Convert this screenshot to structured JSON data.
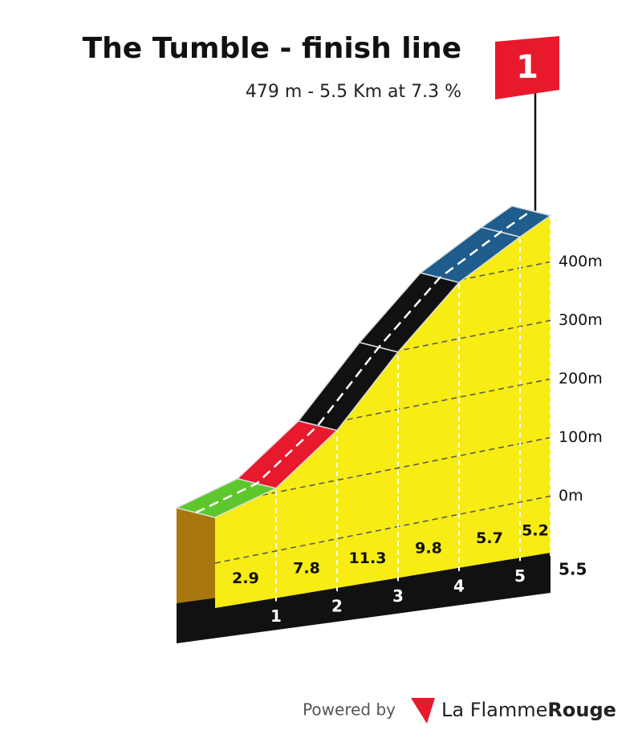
{
  "chart_data": {
    "type": "profile",
    "title": "The Tumble - finish line",
    "subtitle": "479 m - 5.5 Km at 7.3 %",
    "x": [
      0,
      1,
      2,
      3,
      4,
      5,
      5.5
    ],
    "elevation": [
      78,
      107,
      185,
      298,
      396,
      453,
      479
    ],
    "gradients": [
      2.9,
      7.8,
      11.3,
      9.8,
      5.7,
      5.2
    ],
    "segment_colors": [
      "#5ec72d",
      "#e8192c",
      "#111111",
      "#111111",
      "#1e5d8c",
      "#1e5d8c"
    ],
    "area_color": "#f7ec13",
    "xticks": [
      1,
      2,
      3,
      4,
      5,
      5.5
    ],
    "ylim": [
      0,
      400
    ],
    "yticks": [
      {
        "value": 0,
        "label": "0m"
      },
      {
        "value": 100,
        "label": "100m"
      },
      {
        "value": 200,
        "label": "200m"
      },
      {
        "value": 300,
        "label": "300m"
      },
      {
        "value": 400,
        "label": "400m"
      }
    ],
    "flag": "1"
  },
  "footer": {
    "powered": "Powered by",
    "brand_light": "La Flamme",
    "brand_bold": "Rouge"
  }
}
